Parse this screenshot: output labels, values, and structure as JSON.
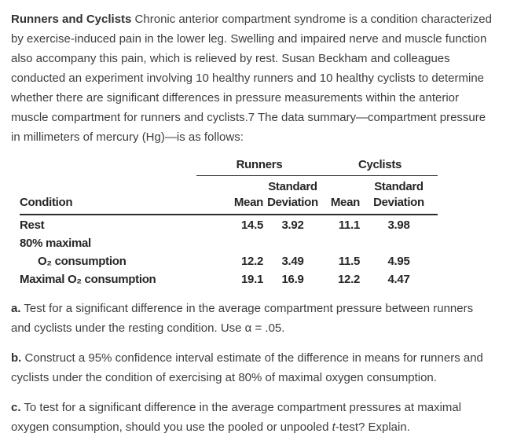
{
  "intro": {
    "lead": "Runners and Cyclists",
    "body": " Chronic anterior compartment syndrome is a condition characterized by exercise-induced pain in the lower leg. Swelling and impaired nerve and muscle function also accompany this pain, which is relieved by rest. Susan Beckham and colleagues conducted an experiment involving 10 healthy runners and 10 healthy cyclists to determine whether there are significant differences in pressure measurements within the anterior muscle compartment for runners and cyclists.7 The data summary—compartment pressure in millimeters of mercury (Hg)—is as follows:"
  },
  "table": {
    "group_headers": {
      "runners": "Runners",
      "cyclists": "Cyclists"
    },
    "col_headers": {
      "condition": "Condition",
      "mean_runners": "Mean",
      "sd_runners": "Standard\nDeviation",
      "mean_cyclists": "Mean",
      "sd_cyclists": "Standard\nDeviation"
    },
    "rows": [
      {
        "label": "Rest",
        "values": [
          "14.5",
          "3.92",
          "11.1",
          "3.98"
        ]
      },
      {
        "label": "80% maximal",
        "values": [
          "",
          "",
          "",
          ""
        ]
      },
      {
        "label": "O₂ consumption",
        "values": [
          "12.2",
          "3.49",
          "11.5",
          "4.95"
        ]
      },
      {
        "label": "Maximal O₂ consumption",
        "values": [
          "19.1",
          "16.9",
          "12.2",
          "4.47"
        ]
      }
    ],
    "units": "compartment pressure in millimeters of mercury (Hg)"
  },
  "questions": {
    "a": {
      "label": "a.",
      "text": " Test for a significant difference in the average compartment pressure between runners and cyclists under the resting condition. Use α = .05."
    },
    "b": {
      "label": "b.",
      "text": " Construct a 95% confidence interval estimate of the difference in means for runners and cyclists under the condition of exercising at 80% of maximal oxygen consumption."
    },
    "c": {
      "label": "c.",
      "text_before": " To test for a significant difference in the average compartment pressures at maximal oxygen consumption, should you use the pooled or unpooled ",
      "italic_term": "t",
      "text_after": "-test? Explain."
    }
  }
}
